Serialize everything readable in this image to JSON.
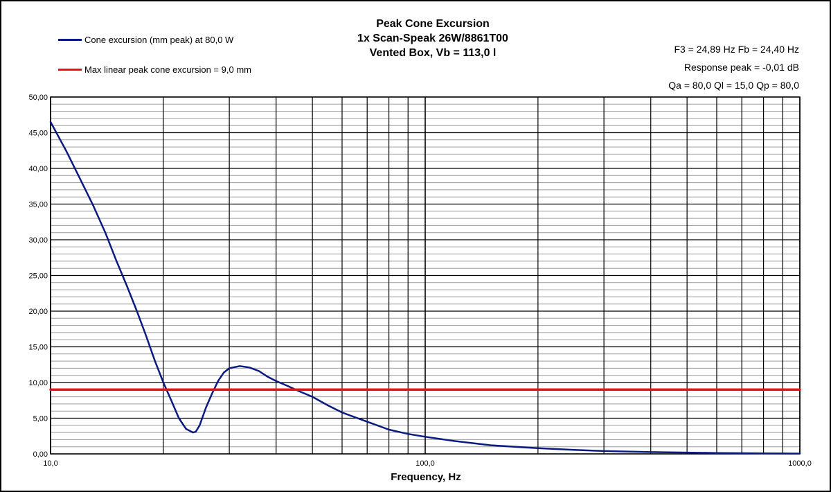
{
  "chart_data": {
    "type": "line",
    "title": [
      "Peak Cone Excursion",
      "1x  Scan-Speak 26W/8861T00",
      "Vented Box, Vb =  113,0  l"
    ],
    "xlabel": "Frequency, Hz",
    "ylabel": "",
    "xscale": "log",
    "xlim": [
      10,
      1000
    ],
    "ylim": [
      0,
      50
    ],
    "xticks": [
      10,
      100,
      1000
    ],
    "xtick_labels": [
      "10,0",
      "100,0",
      "1000,0"
    ],
    "yticks": [
      0,
      5,
      10,
      15,
      20,
      25,
      30,
      35,
      40,
      45,
      50
    ],
    "ytick_labels": [
      "0,00",
      "5,00",
      "10,00",
      "15,00",
      "20,00",
      "25,00",
      "30,00",
      "35,00",
      "40,00",
      "45,00",
      "50,00"
    ],
    "grid": true,
    "legend_position": "top-left",
    "series": [
      {
        "name": "Cone excursion (mm peak) at 80,0 W",
        "color": "#0a1a80",
        "x": [
          10,
          11,
          12,
          13,
          14,
          15,
          16,
          17,
          18,
          19,
          20,
          21,
          22,
          23,
          24,
          24.4,
          25,
          26,
          27,
          28,
          29,
          30,
          32,
          34,
          36,
          38,
          40,
          43,
          46,
          50,
          55,
          60,
          70,
          80,
          90,
          100,
          120,
          150,
          200,
          250,
          300,
          400,
          500,
          600,
          700,
          800,
          900,
          1000
        ],
        "y": [
          46.5,
          42.5,
          38.5,
          34.8,
          31.0,
          27.0,
          23.5,
          20.0,
          16.5,
          13.0,
          10.0,
          7.5,
          5.0,
          3.5,
          3.0,
          3.1,
          4.0,
          6.5,
          8.5,
          10.2,
          11.4,
          12.0,
          12.3,
          12.1,
          11.6,
          10.8,
          10.2,
          9.5,
          8.8,
          8.0,
          6.8,
          5.8,
          4.5,
          3.4,
          2.8,
          2.4,
          1.8,
          1.2,
          0.8,
          0.55,
          0.4,
          0.25,
          0.18,
          0.13,
          0.1,
          0.08,
          0.06,
          0.05
        ]
      },
      {
        "name": "Max linear peak cone excursion = 9,0 mm",
        "color": "#ee1010",
        "x": [
          10,
          1000
        ],
        "y": [
          9,
          9
        ]
      }
    ],
    "annotations": [
      "F3 = 24,89 Hz  Fb = 24,40 Hz",
      "Response peak = -0,01 dB",
      "Qa = 80,0  Ql = 15,0  Qp = 80,0"
    ]
  }
}
